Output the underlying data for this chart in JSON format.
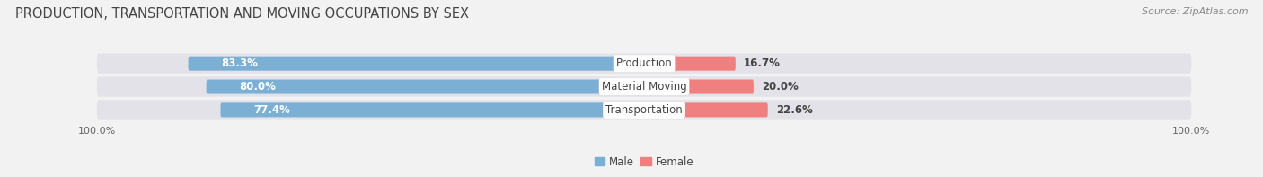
{
  "title": "PRODUCTION, TRANSPORTATION AND MOVING OCCUPATIONS BY SEX",
  "source": "Source: ZipAtlas.com",
  "categories": [
    "Production",
    "Material Moving",
    "Transportation"
  ],
  "male_values": [
    83.3,
    80.0,
    77.4
  ],
  "female_values": [
    16.7,
    20.0,
    22.6
  ],
  "male_color": "#7bafd4",
  "female_color": "#f08080",
  "male_label": "Male",
  "female_label": "Female",
  "bar_height": 0.62,
  "background_color": "#f2f2f2",
  "row_bg_color": "#e2e2e8",
  "title_fontsize": 10.5,
  "source_fontsize": 8,
  "label_fontsize": 8.5,
  "tick_fontsize": 8,
  "value_label_color": "white"
}
